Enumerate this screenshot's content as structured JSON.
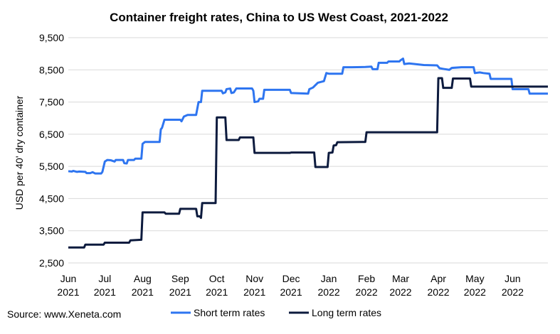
{
  "chart_data": {
    "type": "line",
    "title": "Container freight rates, China to US West Coast, 2021-2022",
    "ylabel": "USD per 40' dry container",
    "xlabel": "",
    "ylim": [
      2500,
      9500
    ],
    "yticks": [
      "2,500",
      "3,500",
      "4,500",
      "5,500",
      "6,500",
      "7,500",
      "8,500",
      "9,500"
    ],
    "ytick_values": [
      2500,
      3500,
      4500,
      5500,
      6500,
      7500,
      8500,
      9500
    ],
    "xlim": [
      "2021-06-01",
      "2022-06-30"
    ],
    "xticks": [
      {
        "date": "2021-06-01",
        "month": "Jun",
        "year": "2021"
      },
      {
        "date": "2021-07-01",
        "month": "Jul",
        "year": "2021"
      },
      {
        "date": "2021-08-01",
        "month": "Aug",
        "year": "2021"
      },
      {
        "date": "2021-09-01",
        "month": "Sep",
        "year": "2021"
      },
      {
        "date": "2021-10-01",
        "month": "Oct",
        "year": "2021"
      },
      {
        "date": "2021-11-01",
        "month": "Nov",
        "year": "2021"
      },
      {
        "date": "2021-12-01",
        "month": "Dec",
        "year": "2021"
      },
      {
        "date": "2022-01-01",
        "month": "Jan",
        "year": "2022"
      },
      {
        "date": "2022-02-01",
        "month": "Feb",
        "year": "2022"
      },
      {
        "date": "2022-03-01",
        "month": "Mar",
        "year": "2022"
      },
      {
        "date": "2022-04-01",
        "month": "Apr",
        "year": "2022"
      },
      {
        "date": "2022-05-01",
        "month": "May",
        "year": "2022"
      },
      {
        "date": "2022-06-01",
        "month": "Jun",
        "year": "2022"
      }
    ],
    "grid": "horizontal",
    "legend_position": "bottom",
    "series": [
      {
        "name": "Short term rates",
        "color": "#2e75f0",
        "points": [
          [
            "2021-06-01",
            5350
          ],
          [
            "2021-06-04",
            5340
          ],
          [
            "2021-06-05",
            5360
          ],
          [
            "2021-06-08",
            5330
          ],
          [
            "2021-06-10",
            5340
          ],
          [
            "2021-06-15",
            5330
          ],
          [
            "2021-06-16",
            5290
          ],
          [
            "2021-06-19",
            5290
          ],
          [
            "2021-06-21",
            5320
          ],
          [
            "2021-06-23",
            5280
          ],
          [
            "2021-06-28",
            5280
          ],
          [
            "2021-06-29",
            5330
          ],
          [
            "2021-07-01",
            5650
          ],
          [
            "2021-07-03",
            5700
          ],
          [
            "2021-07-06",
            5690
          ],
          [
            "2021-07-09",
            5650
          ],
          [
            "2021-07-10",
            5700
          ],
          [
            "2021-07-16",
            5700
          ],
          [
            "2021-07-17",
            5600
          ],
          [
            "2021-07-19",
            5590
          ],
          [
            "2021-07-20",
            5700
          ],
          [
            "2021-07-25",
            5700
          ],
          [
            "2021-07-26",
            5740
          ],
          [
            "2021-07-31",
            5740
          ],
          [
            "2021-08-01",
            6200
          ],
          [
            "2021-08-03",
            6260
          ],
          [
            "2021-08-12",
            6260
          ],
          [
            "2021-08-15",
            6260
          ],
          [
            "2021-08-16",
            6650
          ],
          [
            "2021-08-17",
            6700
          ],
          [
            "2021-08-19",
            6950
          ],
          [
            "2021-09-01",
            6950
          ],
          [
            "2021-09-02",
            6900
          ],
          [
            "2021-09-04",
            7050
          ],
          [
            "2021-09-07",
            7100
          ],
          [
            "2021-09-14",
            7100
          ],
          [
            "2021-09-16",
            7500
          ],
          [
            "2021-09-18",
            7500
          ],
          [
            "2021-09-19",
            7850
          ],
          [
            "2021-09-30",
            7850
          ],
          [
            "2021-10-01",
            7850
          ],
          [
            "2021-10-05",
            7850
          ],
          [
            "2021-10-06",
            7770
          ],
          [
            "2021-10-08",
            7800
          ],
          [
            "2021-10-09",
            7900
          ],
          [
            "2021-10-12",
            7920
          ],
          [
            "2021-10-13",
            7780
          ],
          [
            "2021-10-15",
            7800
          ],
          [
            "2021-10-17",
            7920
          ],
          [
            "2021-10-30",
            7920
          ],
          [
            "2021-10-31",
            7850
          ],
          [
            "2021-11-01",
            7500
          ],
          [
            "2021-11-04",
            7520
          ],
          [
            "2021-11-05",
            7600
          ],
          [
            "2021-11-08",
            7600
          ],
          [
            "2021-11-09",
            7880
          ],
          [
            "2021-11-30",
            7880
          ],
          [
            "2021-12-01",
            7780
          ],
          [
            "2021-12-15",
            7760
          ],
          [
            "2021-12-16",
            7900
          ],
          [
            "2021-12-19",
            7950
          ],
          [
            "2021-12-23",
            8100
          ],
          [
            "2021-12-28",
            8150
          ],
          [
            "2021-12-30",
            8400
          ],
          [
            "2022-01-01",
            8380
          ],
          [
            "2022-01-12",
            8380
          ],
          [
            "2022-01-13",
            8580
          ],
          [
            "2022-01-20",
            8580
          ],
          [
            "2022-01-31",
            8590
          ],
          [
            "2022-02-05",
            8600
          ],
          [
            "2022-02-06",
            8520
          ],
          [
            "2022-02-10",
            8520
          ],
          [
            "2022-02-11",
            8720
          ],
          [
            "2022-02-18",
            8720
          ],
          [
            "2022-02-19",
            8760
          ],
          [
            "2022-02-28",
            8760
          ],
          [
            "2022-03-01",
            8800
          ],
          [
            "2022-03-03",
            8850
          ],
          [
            "2022-03-04",
            8680
          ],
          [
            "2022-03-08",
            8700
          ],
          [
            "2022-03-20",
            8650
          ],
          [
            "2022-03-31",
            8640
          ],
          [
            "2022-04-02",
            8550
          ],
          [
            "2022-04-05",
            8530
          ],
          [
            "2022-04-10",
            8500
          ],
          [
            "2022-04-12",
            8560
          ],
          [
            "2022-04-20",
            8580
          ],
          [
            "2022-04-30",
            8580
          ],
          [
            "2022-05-01",
            8400
          ],
          [
            "2022-05-05",
            8420
          ],
          [
            "2022-05-08",
            8400
          ],
          [
            "2022-05-13",
            8380
          ],
          [
            "2022-05-14",
            8220
          ],
          [
            "2022-05-31",
            8220
          ],
          [
            "2022-06-01",
            7900
          ],
          [
            "2022-06-14",
            7900
          ],
          [
            "2022-06-15",
            7760
          ],
          [
            "2022-06-30",
            7760
          ]
        ]
      },
      {
        "name": "Long term rates",
        "color": "#0d1b3e",
        "points": [
          [
            "2021-06-01",
            2980
          ],
          [
            "2021-06-14",
            2980
          ],
          [
            "2021-06-15",
            3070
          ],
          [
            "2021-06-30",
            3070
          ],
          [
            "2021-07-01",
            3130
          ],
          [
            "2021-07-21",
            3130
          ],
          [
            "2021-07-22",
            3200
          ],
          [
            "2021-07-31",
            3220
          ],
          [
            "2021-08-01",
            4070
          ],
          [
            "2021-08-19",
            4070
          ],
          [
            "2021-08-20",
            4030
          ],
          [
            "2021-08-31",
            4030
          ],
          [
            "2021-09-01",
            4180
          ],
          [
            "2021-09-14",
            4180
          ],
          [
            "2021-09-15",
            3950
          ],
          [
            "2021-09-17",
            3950
          ],
          [
            "2021-09-18",
            3900
          ],
          [
            "2021-09-19",
            4360
          ],
          [
            "2021-09-30",
            4360
          ],
          [
            "2021-10-01",
            7020
          ],
          [
            "2021-10-08",
            7020
          ],
          [
            "2021-10-09",
            6320
          ],
          [
            "2021-10-19",
            6320
          ],
          [
            "2021-10-20",
            6400
          ],
          [
            "2021-10-31",
            6400
          ],
          [
            "2021-11-01",
            5920
          ],
          [
            "2021-11-30",
            5920
          ],
          [
            "2021-12-01",
            5930
          ],
          [
            "2021-12-20",
            5930
          ],
          [
            "2021-12-21",
            5480
          ],
          [
            "2021-12-31",
            5480
          ],
          [
            "2022-01-01",
            5920
          ],
          [
            "2022-01-04",
            5930
          ],
          [
            "2022-01-05",
            6150
          ],
          [
            "2022-01-07",
            6160
          ],
          [
            "2022-01-08",
            6250
          ],
          [
            "2022-01-31",
            6260
          ],
          [
            "2022-02-01",
            6560
          ],
          [
            "2022-03-31",
            6560
          ],
          [
            "2022-04-01",
            8240
          ],
          [
            "2022-04-04",
            8240
          ],
          [
            "2022-04-05",
            7940
          ],
          [
            "2022-04-12",
            7940
          ],
          [
            "2022-04-13",
            8230
          ],
          [
            "2022-04-27",
            8230
          ],
          [
            "2022-04-28",
            7980
          ],
          [
            "2022-06-30",
            7980
          ]
        ]
      }
    ],
    "source": "Source: www.Xeneta.com"
  }
}
